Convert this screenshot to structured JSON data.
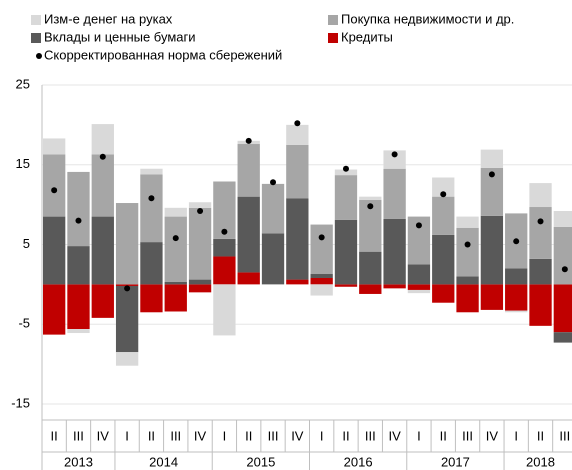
{
  "chart_data": {
    "type": "stacked_bar",
    "categories": [
      "II",
      "III",
      "IV",
      "I",
      "II",
      "III",
      "IV",
      "I",
      "II",
      "III",
      "IV",
      "I",
      "II",
      "III",
      "IV",
      "I",
      "II",
      "III",
      "IV",
      "I",
      "II",
      "III"
    ],
    "year_groups": [
      {
        "label": "2013",
        "size": 3
      },
      {
        "label": "2014",
        "size": 4
      },
      {
        "label": "2015",
        "size": 4
      },
      {
        "label": "2016",
        "size": 4
      },
      {
        "label": "2017",
        "size": 4
      },
      {
        "label": "2018",
        "size": 3
      }
    ],
    "series": [
      {
        "name": "Кредиты",
        "color": "#c00000",
        "values": [
          -6.3,
          -5.6,
          -4.2,
          -0.2,
          -3.5,
          -3.4,
          -1.0,
          3.5,
          1.5,
          0,
          0.6,
          0.8,
          -0.3,
          -1.2,
          -0.5,
          -0.7,
          -2.3,
          -3.5,
          -3.2,
          -3.3,
          -5.2,
          -6.0
        ]
      },
      {
        "name": "Вклады и ценные бумаги",
        "color": "#595959",
        "values": [
          8.5,
          4.8,
          8.5,
          -8.3,
          5.3,
          0.3,
          0.6,
          2.2,
          9.5,
          6.4,
          10.2,
          0.5,
          8.1,
          4.1,
          8.2,
          2.5,
          6.2,
          1.0,
          8.6,
          2.0,
          3.2,
          -1.3
        ]
      },
      {
        "name": "Покупка недвижимости и др.",
        "color": "#a6a6a6",
        "values": [
          7.8,
          9.3,
          7.8,
          10.2,
          8.5,
          8.2,
          9.0,
          7.2,
          6.6,
          6.2,
          6.7,
          6.2,
          5.6,
          6.5,
          6.3,
          6.0,
          4.8,
          6.1,
          6.0,
          6.9,
          6.5,
          7.2
        ]
      },
      {
        "name": "Изм-е денег на руках",
        "color": "#d9d9d9",
        "values": [
          2.0,
          -0.5,
          3.8,
          -1.7,
          0.7,
          1.1,
          0.7,
          -6.4,
          0.4,
          0,
          2.5,
          -1.4,
          0.7,
          0.4,
          2.3,
          -0.4,
          2.4,
          1.4,
          2.3,
          -0.2,
          3.0,
          2.0
        ]
      }
    ],
    "points": {
      "name": "Скорректированная норма сбережений",
      "color": "#000000",
      "values": [
        11.8,
        8.0,
        16.0,
        -0.5,
        10.8,
        5.8,
        9.2,
        6.6,
        18.0,
        12.8,
        20.2,
        5.9,
        14.5,
        9.8,
        16.3,
        7.4,
        11.3,
        5.0,
        13.8,
        5.4,
        7.9,
        1.9
      ]
    },
    "ylim": [
      -15,
      25
    ],
    "yticks": [
      -15,
      -5,
      5,
      15,
      25
    ],
    "grid": true
  }
}
